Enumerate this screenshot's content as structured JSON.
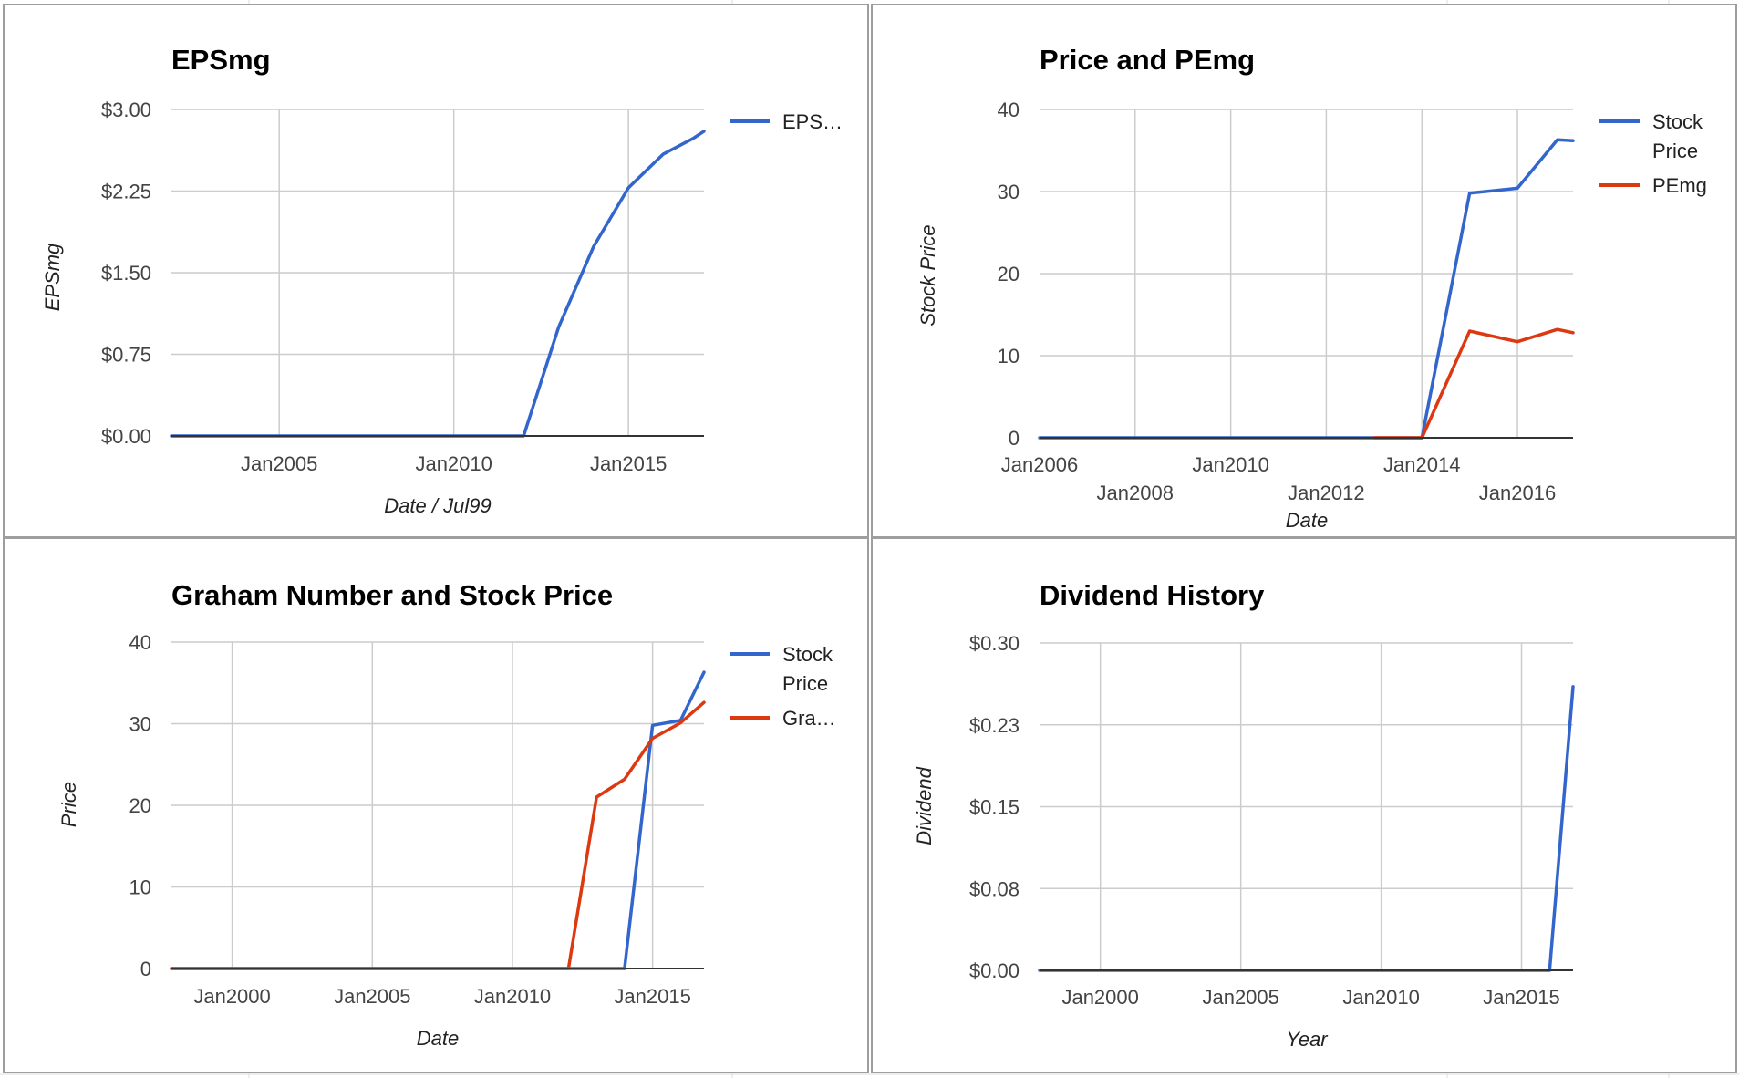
{
  "colors": {
    "blue": "#3366cc",
    "red": "#dc3912",
    "grid": "#cccccc",
    "panel_border": "#9e9e9e"
  },
  "chart_data": [
    {
      "id": "eps",
      "type": "line",
      "title": "EPSmg",
      "xlabel": "Date / Jul99",
      "ylabel": "EPSmg",
      "x_type": "date",
      "xlim": [
        "2001-12-01",
        "2017-03-01"
      ],
      "ylim": [
        0,
        3
      ],
      "y_ticks": [
        {
          "value": 0,
          "label": "$0.00"
        },
        {
          "value": 0.75,
          "label": "$0.75"
        },
        {
          "value": 1.5,
          "label": "$1.50"
        },
        {
          "value": 2.25,
          "label": "$2.25"
        },
        {
          "value": 3,
          "label": "$3.00"
        }
      ],
      "x_ticks": [
        {
          "value": "2005-01-01",
          "label": "Jan2005"
        },
        {
          "value": "2010-01-01",
          "label": "Jan2010"
        },
        {
          "value": "2015-01-01",
          "label": "Jan2015"
        }
      ],
      "grid": true,
      "legend": "right",
      "series": [
        {
          "name": "EPS…",
          "color": "#3366cc",
          "points": [
            [
              "2001-12-01",
              0
            ],
            [
              "2012-01-01",
              0
            ],
            [
              "2013-01-01",
              1.0
            ],
            [
              "2014-01-01",
              1.74
            ],
            [
              "2015-01-01",
              2.28
            ],
            [
              "2016-01-01",
              2.59
            ],
            [
              "2016-11-01",
              2.73
            ],
            [
              "2017-03-01",
              2.8
            ]
          ]
        }
      ]
    },
    {
      "id": "price",
      "type": "line",
      "title": "Price and PEmg",
      "xlabel": "Date",
      "ylabel": "Stock Price",
      "x_type": "date",
      "xlim": [
        "2006-01-01",
        "2017-03-01"
      ],
      "ylim": [
        0,
        40
      ],
      "y_ticks": [
        {
          "value": 0,
          "label": "0"
        },
        {
          "value": 10,
          "label": "10"
        },
        {
          "value": 20,
          "label": "20"
        },
        {
          "value": 30,
          "label": "30"
        },
        {
          "value": 40,
          "label": "40"
        }
      ],
      "x_ticks": [
        {
          "value": "2006-01-01",
          "label": "Jan2006",
          "row": 0
        },
        {
          "value": "2008-01-01",
          "label": "Jan2008",
          "row": 1
        },
        {
          "value": "2010-01-01",
          "label": "Jan2010",
          "row": 0
        },
        {
          "value": "2012-01-01",
          "label": "Jan2012",
          "row": 1
        },
        {
          "value": "2014-01-01",
          "label": "Jan2014",
          "row": 0
        },
        {
          "value": "2016-01-01",
          "label": "Jan2016",
          "row": 1
        }
      ],
      "grid": true,
      "legend": "right",
      "series": [
        {
          "name": "Stock Price",
          "color": "#3366cc",
          "points": [
            [
              "2006-01-01",
              0
            ],
            [
              "2014-01-01",
              0
            ],
            [
              "2015-01-01",
              29.8
            ],
            [
              "2016-01-01",
              30.4
            ],
            [
              "2016-11-01",
              36.3
            ],
            [
              "2017-03-01",
              36.2
            ]
          ]
        },
        {
          "name": "PEmg",
          "color": "#dc3912",
          "points": [
            [
              "2013-01-01",
              0
            ],
            [
              "2014-01-01",
              0
            ],
            [
              "2015-01-01",
              13.0
            ],
            [
              "2016-01-01",
              11.7
            ],
            [
              "2016-11-01",
              13.2
            ],
            [
              "2017-03-01",
              12.8
            ]
          ]
        }
      ]
    },
    {
      "id": "graham",
      "type": "line",
      "title": "Graham Number and Stock Price",
      "xlabel": "Date",
      "ylabel": "Price",
      "x_type": "date",
      "xlim": [
        "1997-11-01",
        "2016-11-01"
      ],
      "ylim": [
        0,
        40
      ],
      "y_ticks": [
        {
          "value": 0,
          "label": "0"
        },
        {
          "value": 10,
          "label": "10"
        },
        {
          "value": 20,
          "label": "20"
        },
        {
          "value": 30,
          "label": "30"
        },
        {
          "value": 40,
          "label": "40"
        }
      ],
      "x_ticks": [
        {
          "value": "2000-01-01",
          "label": "Jan2000"
        },
        {
          "value": "2005-01-01",
          "label": "Jan2005"
        },
        {
          "value": "2010-01-01",
          "label": "Jan2010"
        },
        {
          "value": "2015-01-01",
          "label": "Jan2015"
        }
      ],
      "grid": true,
      "legend": "right",
      "series": [
        {
          "name": "Stock Price",
          "color": "#3366cc",
          "points": [
            [
              "1997-11-01",
              0
            ],
            [
              "2014-01-01",
              0
            ],
            [
              "2015-01-01",
              29.8
            ],
            [
              "2016-01-01",
              30.4
            ],
            [
              "2016-11-01",
              36.3
            ]
          ]
        },
        {
          "name": "Gra…",
          "color": "#dc3912",
          "points": [
            [
              "1997-11-01",
              0
            ],
            [
              "2012-01-01",
              0
            ],
            [
              "2013-01-01",
              21.0
            ],
            [
              "2014-01-01",
              23.2
            ],
            [
              "2015-01-01",
              28.2
            ],
            [
              "2016-01-01",
              30.1
            ],
            [
              "2016-11-01",
              32.6
            ]
          ]
        }
      ]
    },
    {
      "id": "dividend",
      "type": "line",
      "title": "Dividend History",
      "xlabel": "Year",
      "ylabel": "Dividend",
      "x_type": "date",
      "xlim": [
        "1997-11-01",
        "2016-11-01"
      ],
      "ylim": [
        0,
        0.3
      ],
      "y_ticks": [
        {
          "value": 0,
          "label": "$0.00"
        },
        {
          "value": 0.075,
          "label": "$0.08"
        },
        {
          "value": 0.15,
          "label": "$0.15"
        },
        {
          "value": 0.225,
          "label": "$0.23"
        },
        {
          "value": 0.3,
          "label": "$0.30"
        }
      ],
      "x_ticks": [
        {
          "value": "2000-01-01",
          "label": "Jan2000"
        },
        {
          "value": "2005-01-01",
          "label": "Jan2005"
        },
        {
          "value": "2010-01-01",
          "label": "Jan2010"
        },
        {
          "value": "2015-01-01",
          "label": "Jan2015"
        }
      ],
      "grid": true,
      "legend": "none",
      "series": [
        {
          "name": "",
          "color": "#3366cc",
          "points": [
            [
              "1997-11-01",
              0
            ],
            [
              "2016-01-01",
              0
            ],
            [
              "2016-11-01",
              0.26
            ]
          ]
        }
      ]
    }
  ]
}
